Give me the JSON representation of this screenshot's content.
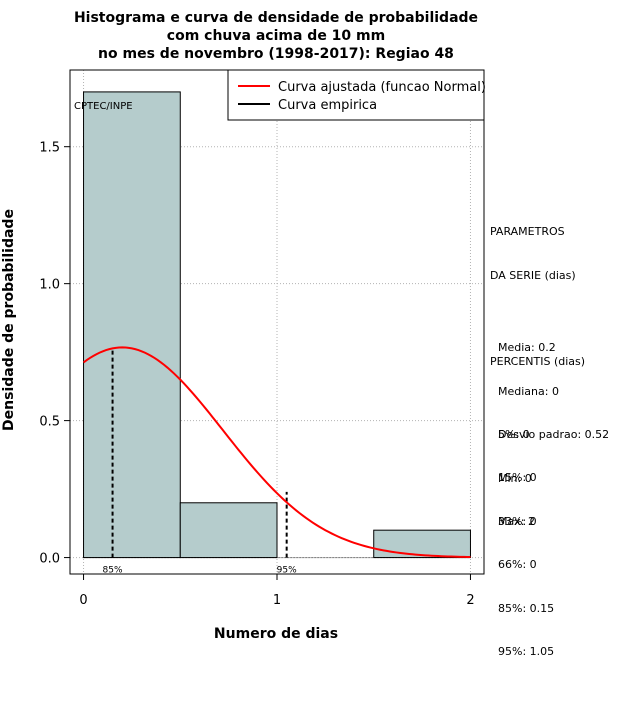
{
  "chart_data": {
    "type": "bar",
    "title_lines": [
      "Histograma e curva de densidade de probabilidade",
      "com chuva acima de 10 mm",
      "no mes de novembro (1998-2017): Regiao 48"
    ],
    "xlabel": "Numero de dias",
    "ylabel": "Densidade de probabilidade",
    "xlim": [
      -0.07,
      2.07
    ],
    "ylim": [
      -0.06,
      1.78
    ],
    "x_ticks": [
      0,
      1,
      2
    ],
    "y_ticks": [
      0.0,
      0.5,
      1.0,
      1.5
    ],
    "y_tick_labels": [
      "0.0",
      "0.5",
      "1.0",
      "1.5"
    ],
    "grid": true,
    "credit": "CPTEC/INPE",
    "bins": [
      {
        "x0": 0.0,
        "x1": 0.5,
        "density": 1.7
      },
      {
        "x0": 0.5,
        "x1": 1.0,
        "density": 0.2
      },
      {
        "x0": 1.0,
        "x1": 1.5,
        "density": 0.0
      },
      {
        "x0": 1.5,
        "x1": 2.0,
        "density": 0.1
      }
    ],
    "bar_color": "#b5cccc",
    "fitted_curve": {
      "name": "Curva ajustada (funcao Normal)",
      "color": "#ff0000",
      "mean": 0.2,
      "sd": 0.52,
      "x_range": [
        0,
        2
      ]
    },
    "empirical_curve": {
      "name": "Curva empirica",
      "color": "#000000"
    },
    "percentile_markers": [
      {
        "label": "85%",
        "x": 0.15
      },
      {
        "label": "95%",
        "x": 1.05
      }
    ],
    "legend_position": "top-right"
  },
  "sidebar": {
    "params_title": [
      "PARAMETROS",
      "DA SERIE (dias)"
    ],
    "params": [
      "Media: 0.2",
      "Mediana: 0",
      "Desvio padrao: 0.52",
      "Min: 0",
      "Max: 2"
    ],
    "percentis_title": "PERCENTIS (dias)",
    "percentis": [
      "5%: 0",
      "15%: 0",
      "33%: 0",
      "66%: 0",
      "85%: 0.15",
      "95%: 1.05"
    ]
  }
}
